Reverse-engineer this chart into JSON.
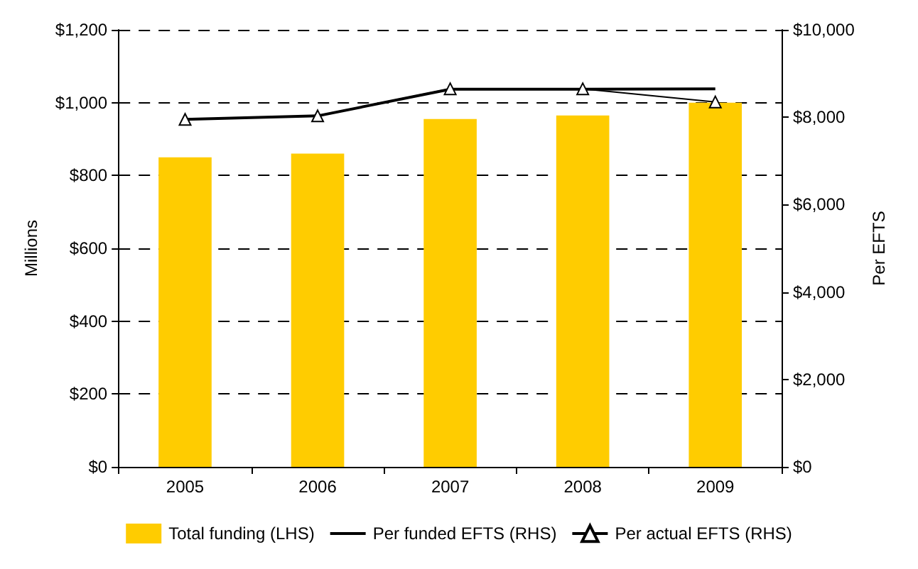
{
  "chart_data": {
    "type": "bar",
    "ylabel": "Millions",
    "y2label": "Per EFTS",
    "categories": [
      "2005",
      "2006",
      "2007",
      "2008",
      "2009"
    ],
    "series": [
      {
        "name": "Total funding (LHS)",
        "color": "#ffcc00",
        "values": [
          850,
          860,
          955,
          965,
          1000
        ]
      },
      {
        "name": "Per funded EFTS (RHS)",
        "type": "line",
        "axis": "y2",
        "color": "#000000",
        "marker": "none",
        "values": [
          7950,
          8030,
          8640,
          8640,
          8650
        ]
      },
      {
        "name": "Per actual EFTS (RHS)",
        "type": "line",
        "axis": "y2",
        "color": "#000000",
        "marker": "triangle",
        "values": [
          7950,
          8030,
          8650,
          8650,
          8350
        ]
      }
    ],
    "ylim": [
      0,
      1200
    ],
    "yticks": [
      {
        "value": 0,
        "label": "$0"
      },
      {
        "value": 200,
        "label": "$200"
      },
      {
        "value": 400,
        "label": "$400"
      },
      {
        "value": 600,
        "label": "$600"
      },
      {
        "value": 800,
        "label": "$800"
      },
      {
        "value": 1000,
        "label": "$1,000"
      },
      {
        "value": 1200,
        "label": "$1,200"
      }
    ],
    "y2lim": [
      0,
      10000
    ],
    "y2ticks": [
      {
        "value": 0,
        "label": "$0"
      },
      {
        "value": 2000,
        "label": "$2,000"
      },
      {
        "value": 4000,
        "label": "$4,000"
      },
      {
        "value": 6000,
        "label": "$6,000"
      },
      {
        "value": 8000,
        "label": "$8,000"
      },
      {
        "value": 10000,
        "label": "$10,000"
      }
    ],
    "grid": "y",
    "legend": "bottom"
  }
}
